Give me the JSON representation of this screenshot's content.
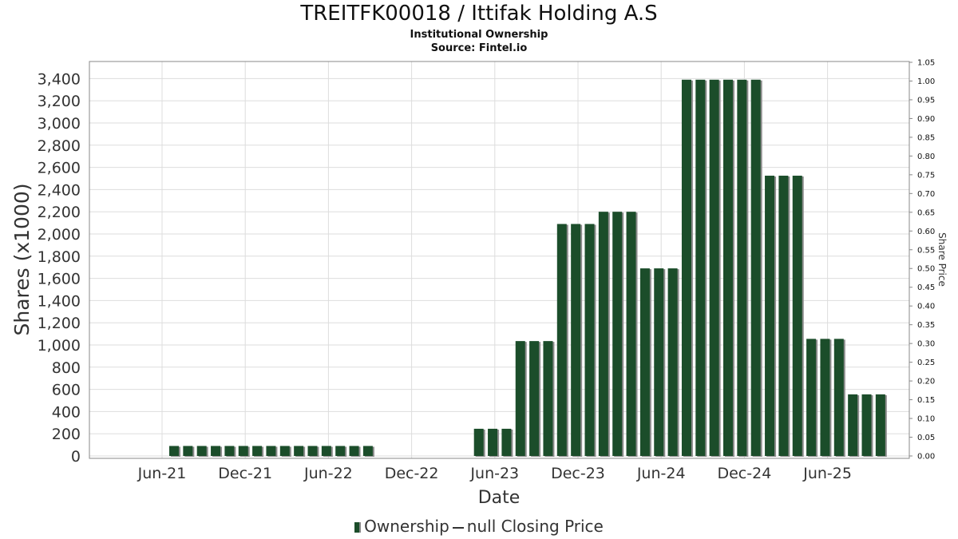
{
  "header": {
    "title": "TREITFK00018 / Ittifak Holding A.S",
    "subtitle": "Institutional Ownership",
    "source": "Source: Fintel.io"
  },
  "legend": {
    "ownership_label": "Ownership",
    "price_label": "null Closing Price"
  },
  "colors": {
    "bar": "#1b4d2a",
    "bar_shadow": "#8c8c8c",
    "grid": "#dddddd",
    "plot_border": "#888888"
  },
  "chart_data": {
    "type": "bar",
    "title": "TREITFK00018 / Ittifak Holding A.S",
    "subtitle": "Institutional Ownership",
    "xlabel": "Date",
    "ylabel": "Shares (x1000)",
    "y2label": "Share Price",
    "ylim": [
      0,
      3500
    ],
    "y2lim": [
      0,
      1.05
    ],
    "yticks": [
      "0",
      "200",
      "400",
      "600",
      "800",
      "1,000",
      "1,200",
      "1,400",
      "1,600",
      "1,800",
      "2,000",
      "2,200",
      "2,400",
      "2,600",
      "2,800",
      "3,000",
      "3,200",
      "3,400"
    ],
    "y2ticks": [
      "0.00",
      "0.05",
      "0.10",
      "0.15",
      "0.20",
      "0.25",
      "0.30",
      "0.35",
      "0.40",
      "0.45",
      "0.50",
      "0.55",
      "0.60",
      "0.65",
      "0.70",
      "0.75",
      "0.80",
      "0.85",
      "0.90",
      "0.95",
      "1.00",
      "1.05"
    ],
    "xticks": [
      "Jun-21",
      "Dec-21",
      "Jun-22",
      "Dec-22",
      "Jun-23",
      "Dec-23",
      "Jun-24",
      "Dec-24",
      "Jun-25"
    ],
    "grid": true,
    "legend_position": "bottom",
    "series": [
      {
        "name": "Ownership",
        "values": [
          90,
          90,
          90,
          90,
          90,
          90,
          90,
          90,
          90,
          90,
          90,
          90,
          90,
          90,
          90,
          0,
          0,
          0,
          0,
          0,
          0,
          0,
          245,
          245,
          245,
          1035,
          1035,
          1035,
          2090,
          2090,
          2090,
          2200,
          2200,
          2200,
          1690,
          1690,
          1690,
          3390,
          3390,
          3390,
          3390,
          3390,
          3390,
          2525,
          2525,
          2525,
          1055,
          1055,
          1055,
          555,
          555,
          555
        ]
      }
    ]
  }
}
